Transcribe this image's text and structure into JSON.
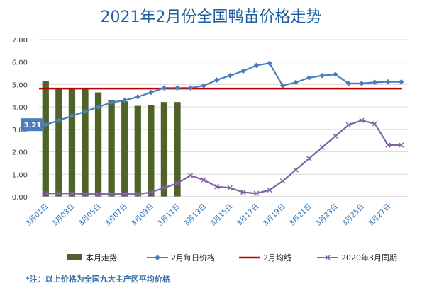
{
  "chart_data": {
    "type": "bar+line",
    "title": "2021年2月份全国鸭苗价格走势",
    "footnote": "*注：以上价格为全国九大主产区平均价格",
    "ylim": [
      0,
      7
    ],
    "yticks": [
      "0.00",
      "1.00",
      "2.00",
      "3.00",
      "4.00",
      "5.00",
      "6.00",
      "7.00"
    ],
    "x_tick_labels": [
      "3月01日",
      "3月03日",
      "3月05日",
      "3月07日",
      "3月09日",
      "3月11日",
      "3月13日",
      "3月15日",
      "3月17日",
      "3月19日",
      "3月21日",
      "3月23日",
      "3月25日",
      "3月27日"
    ],
    "num_days": 28,
    "grid": true,
    "legend_position": "bottom",
    "series": [
      {
        "name": "本月走势",
        "kind": "bar",
        "color": "#4f6228",
        "values": [
          5.15,
          4.8,
          4.8,
          4.8,
          4.65,
          4.3,
          4.25,
          4.05,
          4.08,
          4.22,
          4.22
        ]
      },
      {
        "name": "2月每日价格",
        "kind": "line",
        "marker": "diamond",
        "color": "#4a7ebb",
        "values": [
          3.21,
          3.4,
          3.6,
          3.8,
          4.0,
          4.2,
          4.3,
          4.45,
          4.65,
          4.85,
          4.85,
          4.85,
          4.95,
          5.2,
          5.4,
          5.6,
          5.85,
          5.95,
          4.95,
          5.1,
          5.3,
          5.4,
          5.45,
          5.05,
          5.05,
          5.1,
          5.12,
          5.12
        ]
      },
      {
        "name": "2月均线",
        "kind": "hline",
        "color": "#c00000",
        "value": 4.82
      },
      {
        "name": "2020年3月同期",
        "kind": "line",
        "marker": "x",
        "color": "#8064a2",
        "values": [
          0.15,
          0.15,
          0.15,
          0.12,
          0.12,
          0.12,
          0.12,
          0.12,
          0.2,
          0.4,
          0.6,
          0.95,
          0.75,
          0.45,
          0.4,
          0.2,
          0.15,
          0.3,
          0.7,
          1.2,
          1.7,
          2.2,
          2.7,
          3.2,
          3.4,
          3.25,
          2.3,
          2.3
        ]
      }
    ],
    "callout": {
      "label": "3.21",
      "day_index": 0,
      "value": 3.21,
      "color": "#4a7ebb"
    }
  }
}
